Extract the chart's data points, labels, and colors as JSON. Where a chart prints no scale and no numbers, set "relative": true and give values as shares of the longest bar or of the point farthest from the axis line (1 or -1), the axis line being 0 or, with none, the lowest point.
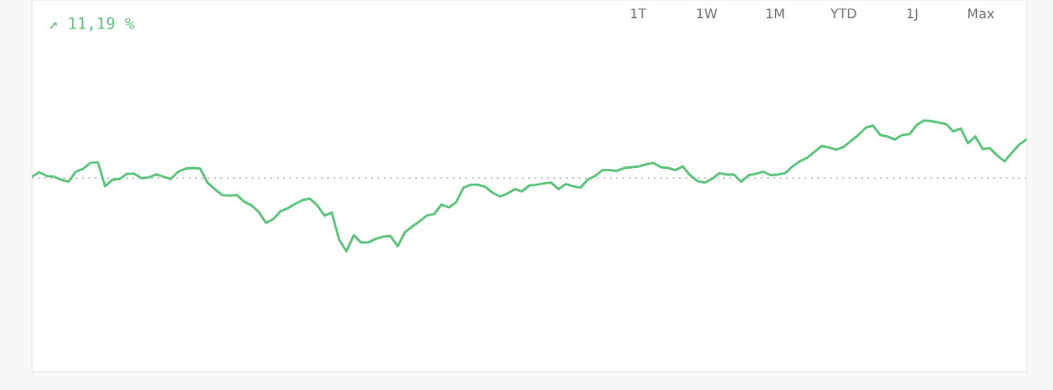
{
  "chart_data": {
    "type": "line",
    "title": "↗ 11,19 %",
    "annotations": [
      "1T",
      "1W",
      "1M",
      "YTD",
      "1J",
      "Max"
    ],
    "relative": true,
    "categories": [
      null,
      null,
      null,
      null,
      null,
      null,
      null,
      null,
      null,
      null,
      null,
      null,
      null,
      null,
      null,
      null,
      null,
      null,
      null,
      null,
      null,
      null,
      null,
      null,
      null,
      null,
      null,
      null,
      null,
      null,
      null,
      null,
      null,
      null,
      null,
      null,
      null,
      null,
      null,
      null,
      null,
      null,
      null,
      null,
      null,
      null,
      null,
      null,
      null,
      null,
      null,
      null,
      null,
      null,
      null,
      null,
      null,
      null,
      null,
      null,
      null,
      null,
      null,
      null,
      null,
      null,
      null,
      null,
      null,
      null,
      null,
      null,
      null,
      null,
      null,
      null,
      null,
      null,
      null,
      null,
      null,
      null,
      null,
      null,
      null,
      null,
      null,
      null,
      null,
      null,
      null,
      null,
      null,
      null,
      null,
      null,
      null,
      null,
      null,
      null,
      null,
      null,
      null,
      null,
      null,
      null,
      null,
      null,
      null,
      null,
      null,
      null,
      null,
      null,
      null,
      null,
      null,
      null,
      null,
      null,
      null,
      null,
      null,
      null,
      null,
      null,
      null,
      null,
      null,
      null,
      null,
      null,
      null,
      null,
      null,
      null,
      null
    ],
    "series": [
      {
        "color": "#5dc47c",
        "values": [
          0.02,
          0.08,
          0.03,
          0.02,
          -0.02,
          -0.05,
          0.09,
          0.13,
          0.21,
          0.22,
          -0.11,
          -0.02,
          -0.01,
          0.06,
          0.06,
          0.0,
          0.01,
          0.05,
          0.02,
          -0.01,
          0.09,
          0.13,
          0.14,
          0.13,
          -0.06,
          -0.15,
          -0.23,
          -0.24,
          -0.23,
          -0.32,
          -0.37,
          -0.46,
          -0.61,
          -0.56,
          -0.45,
          -0.41,
          -0.35,
          -0.3,
          -0.28,
          -0.37,
          -0.51,
          -0.47,
          -0.84,
          -1,
          -0.78,
          -0.88,
          -0.88,
          -0.83,
          -0.8,
          -0.79,
          -0.93,
          -0.74,
          -0.66,
          -0.59,
          -0.51,
          -0.49,
          -0.36,
          -0.4,
          -0.33,
          -0.13,
          -0.09,
          -0.09,
          -0.12,
          -0.2,
          -0.25,
          -0.21,
          -0.15,
          -0.18,
          -0.1,
          -0.09,
          -0.07,
          -0.06,
          -0.15,
          -0.08,
          -0.11,
          -0.13,
          -0.02,
          0.03,
          0.11,
          0.11,
          0.1,
          0.14,
          0.15,
          0.16,
          0.19,
          0.21,
          0.15,
          0.14,
          0.11,
          0.16,
          0.04,
          -0.04,
          -0.06,
          -0.01,
          0.07,
          0.05,
          0.05,
          -0.05,
          0.04,
          0.06,
          0.09,
          0.04,
          0.05,
          0.07,
          0.16,
          0.23,
          0.28,
          0.36,
          0.44,
          0.42,
          0.39,
          0.43,
          0.51,
          0.59,
          0.69,
          0.72,
          0.59,
          0.57,
          0.53,
          0.59,
          0.6,
          0.73,
          0.79,
          0.78,
          0.76,
          0.74,
          0.64,
          0.68,
          0.48,
          0.57,
          0.4,
          0.41,
          0.31,
          0.23,
          0.35,
          0.46,
          0.53
        ]
      }
    ],
    "ref_lines": [
      {
        "axis": "y",
        "value": 0,
        "color": "#a6a6a6",
        "line_style": "dotted"
      }
    ]
  }
}
